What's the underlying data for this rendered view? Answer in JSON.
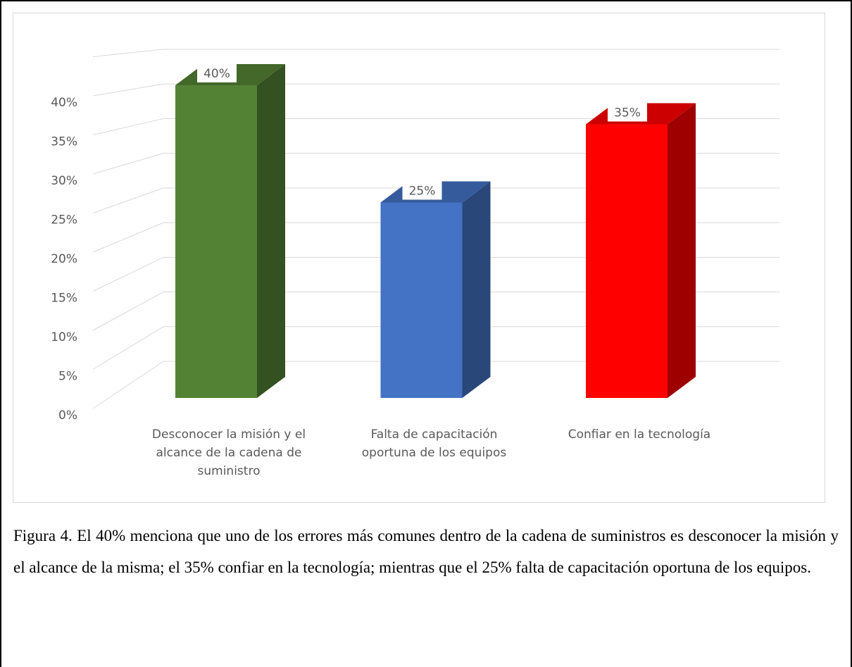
{
  "chart_data": {
    "type": "bar3d",
    "categories": [
      "Desconocer la misión y el alcance de la cadena de suministro",
      "Falta de capacitación oportuna de los equipos",
      "Confiar en la tecnología"
    ],
    "values": [
      40,
      25,
      35
    ],
    "value_labels": [
      "40%",
      "25%",
      "35%"
    ],
    "colors": [
      "#548235",
      "#4472c4",
      "#ff0000"
    ],
    "ylim": [
      0,
      45
    ],
    "yticks": [
      {
        "value": 0,
        "label": "0%"
      },
      {
        "value": 5,
        "label": "5%"
      },
      {
        "value": 10,
        "label": "10%"
      },
      {
        "value": 15,
        "label": "15%"
      },
      {
        "value": 20,
        "label": "20%"
      },
      {
        "value": 25,
        "label": "25%"
      },
      {
        "value": 30,
        "label": "30%"
      },
      {
        "value": 35,
        "label": "35%"
      },
      {
        "value": 40,
        "label": "40%"
      }
    ],
    "grid": true
  },
  "caption": "Figura 4. El 40% menciona que uno de los errores más comunes dentro de la cadena de suministros es desconocer la misión y el alcance de la misma; el 35% confiar en la tecnología; mientras que el 25% falta de capacitación oportuna de los equipos."
}
